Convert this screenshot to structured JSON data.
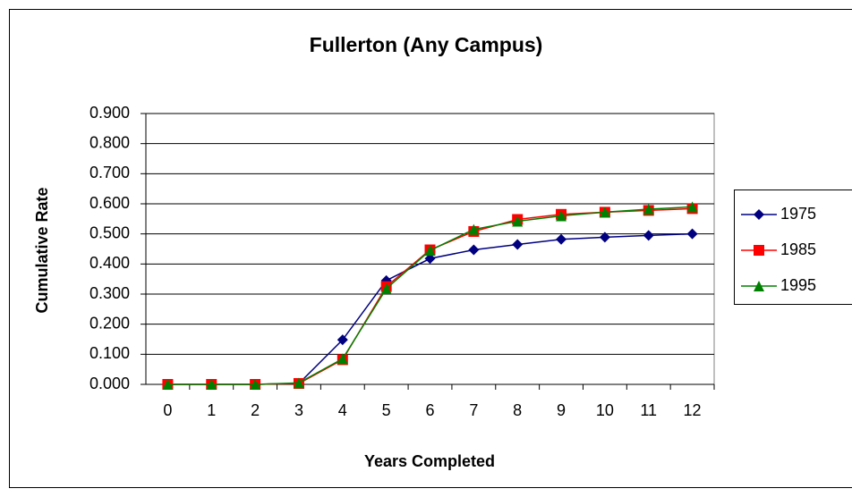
{
  "chart_data": {
    "type": "line",
    "title": "Fullerton (Any Campus)",
    "x_label": "Years Completed",
    "y_label": "Cumulative Rate",
    "categories": [
      "0",
      "1",
      "2",
      "3",
      "4",
      "5",
      "6",
      "7",
      "8",
      "9",
      "10",
      "11",
      "12"
    ],
    "series": [
      {
        "name": "1975",
        "color": "#000080",
        "marker": "diamond",
        "values": [
          0,
          0,
          0,
          0.003,
          0.148,
          0.345,
          0.418,
          0.447,
          0.465,
          0.482,
          0.489,
          0.495,
          0.5
        ]
      },
      {
        "name": "1985",
        "color": "#ff0000",
        "marker": "square",
        "values": [
          0,
          0,
          0,
          0.003,
          0.082,
          0.325,
          0.447,
          0.508,
          0.548,
          0.565,
          0.572,
          0.578,
          0.584
        ]
      },
      {
        "name": "1995",
        "color": "#008000",
        "marker": "triangle",
        "values": [
          0,
          0,
          0,
          0.005,
          0.085,
          0.318,
          0.445,
          0.515,
          0.542,
          0.56,
          0.572,
          0.582,
          0.59
        ]
      }
    ],
    "ylim": [
      0,
      0.9
    ],
    "yticks": [
      {
        "value": 0,
        "label": "0.000"
      },
      {
        "value": 0.1,
        "label": "0.100"
      },
      {
        "value": 0.2,
        "label": "0.200"
      },
      {
        "value": 0.3,
        "label": "0.300"
      },
      {
        "value": 0.4,
        "label": "0.400"
      },
      {
        "value": 0.5,
        "label": "0.500"
      },
      {
        "value": 0.6,
        "label": "0.600"
      },
      {
        "value": 0.7,
        "label": "0.700"
      },
      {
        "value": 0.8,
        "label": "0.800"
      },
      {
        "value": 0.9,
        "label": "0.900"
      }
    ],
    "grid": true,
    "legend": "right"
  }
}
